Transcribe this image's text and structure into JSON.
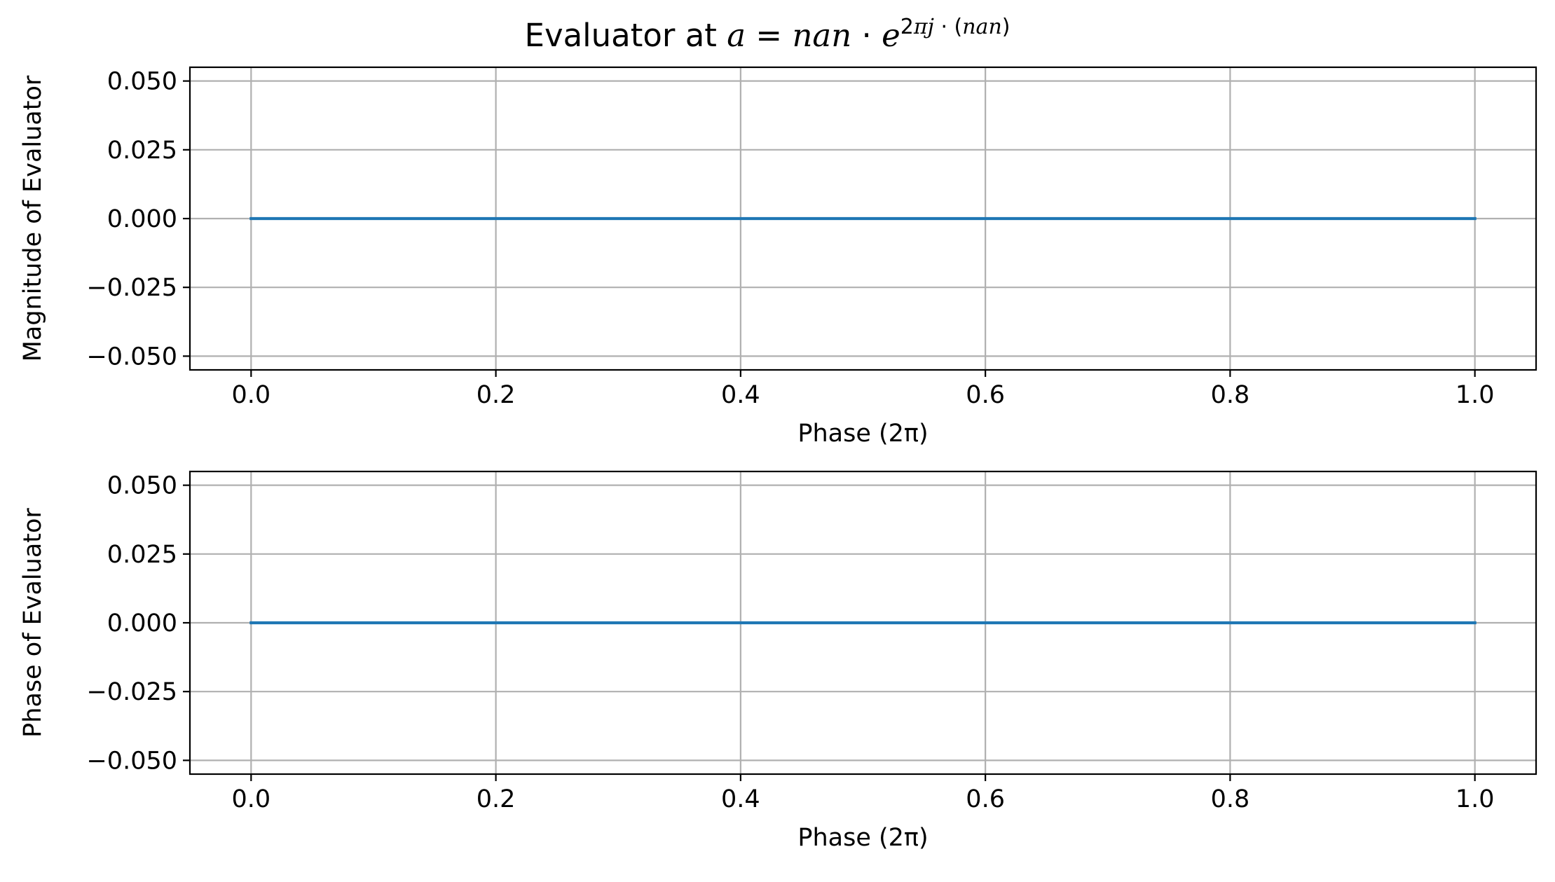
{
  "colors": {
    "series_line": "#1f77b4",
    "grid": "#b0b0b0",
    "spine": "#000000"
  },
  "title": {
    "prefix": "Evaluator at ",
    "var": "a",
    "eq": " = ",
    "mag": "nan",
    "dot": " · ",
    "base": "e",
    "exp_a": "2",
    "exp_b": "πj",
    "exp_c": " · (",
    "exp_d": "nan",
    "exp_e": ")"
  },
  "chart_data": [
    {
      "type": "line",
      "title": "Evaluator at a = nan · e^{2πj · (nan)}",
      "xlabel": "Phase (2π)",
      "ylabel": "Magnitude of Evaluator",
      "xlim": [
        -0.05,
        1.05
      ],
      "ylim": [
        -0.055,
        0.055
      ],
      "xticks": [
        "0.0",
        "0.2",
        "0.4",
        "0.6",
        "0.8",
        "1.0"
      ],
      "yticks": [
        "0.050",
        "0.025",
        "0.000",
        "−0.025",
        "−0.050"
      ],
      "grid": true,
      "series": [
        {
          "x": [
            0.0,
            0.2,
            0.4,
            0.6,
            0.8,
            1.0
          ],
          "y": [
            0,
            0,
            0,
            0,
            0,
            0
          ]
        }
      ]
    },
    {
      "type": "line",
      "xlabel": "Phase (2π)",
      "ylabel": "Phase of Evaluator",
      "xlim": [
        -0.05,
        1.05
      ],
      "ylim": [
        -0.055,
        0.055
      ],
      "xticks": [
        "0.0",
        "0.2",
        "0.4",
        "0.6",
        "0.8",
        "1.0"
      ],
      "yticks": [
        "0.050",
        "0.025",
        "0.000",
        "−0.025",
        "−0.050"
      ],
      "grid": true,
      "series": [
        {
          "x": [
            0.0,
            0.2,
            0.4,
            0.6,
            0.8,
            1.0
          ],
          "y": [
            0,
            0,
            0,
            0,
            0,
            0
          ]
        }
      ]
    }
  ]
}
